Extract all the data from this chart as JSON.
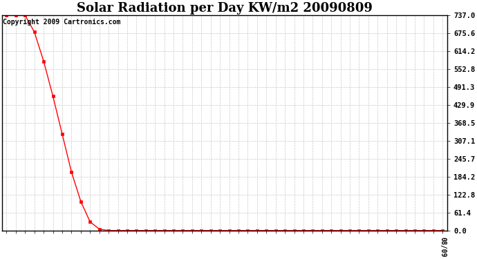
{
  "title": "Solar Radiation per Day KW/m2 20090809",
  "copyright_text": "Copyright 2009 Cartronics.com",
  "line_color": "#ff0000",
  "bg_color": "#ffffff",
  "grid_color": "#c8c8c8",
  "marker": "s",
  "marker_size": 2.5,
  "ylim": [
    0,
    737.0
  ],
  "yticks": [
    0.0,
    61.4,
    122.8,
    184.2,
    245.7,
    307.1,
    368.5,
    429.9,
    491.3,
    552.8,
    614.2,
    675.6,
    737.0
  ],
  "ytick_labels": [
    "0.0",
    "61.4",
    "122.8",
    "184.2",
    "245.7",
    "307.1",
    "368.5",
    "429.9",
    "491.3",
    "552.8",
    "614.2",
    "675.6",
    "737.0"
  ],
  "n_points": 48,
  "xlabel_last": "08/09",
  "title_fontsize": 13,
  "copyright_fontsize": 7,
  "y_data": [
    737.0,
    737.0,
    737.0,
    680.0,
    580.0,
    460.0,
    330.0,
    200.0,
    100.0,
    30.0,
    5.0,
    0.0,
    0.0,
    0.0,
    0.0,
    0.0,
    0.0,
    0.0,
    0.0,
    0.0,
    0.0,
    0.0,
    0.0,
    0.0,
    0.0,
    0.0,
    0.0,
    0.0,
    0.0,
    0.0,
    0.0,
    0.0,
    0.0,
    0.0,
    0.0,
    0.0,
    0.0,
    0.0,
    0.0,
    0.0,
    0.0,
    0.0,
    0.0,
    0.0,
    0.0,
    0.0,
    0.0,
    0.0
  ]
}
